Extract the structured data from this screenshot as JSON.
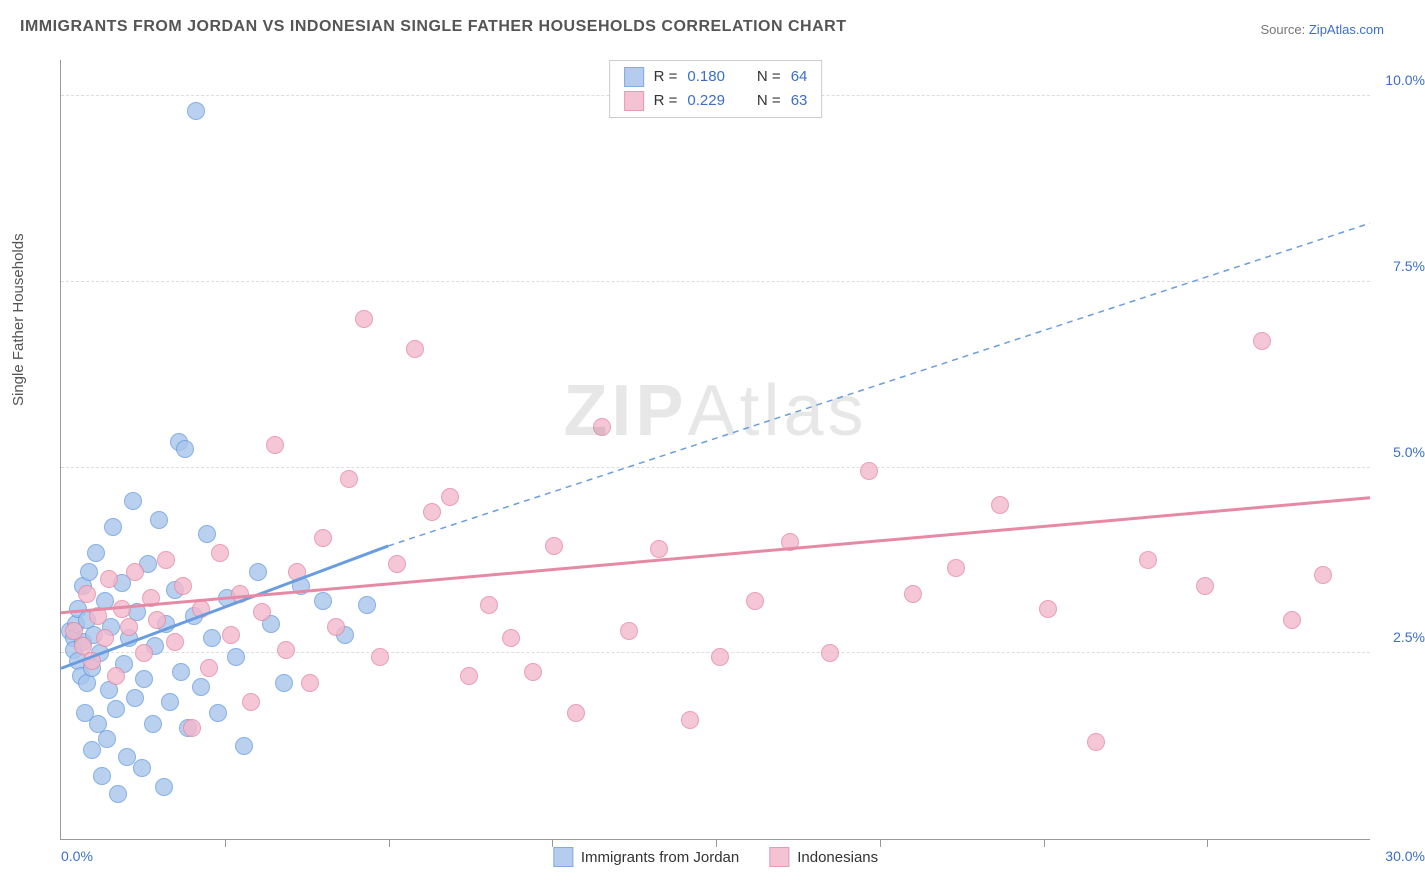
{
  "title": "IMMIGRANTS FROM JORDAN VS INDONESIAN SINGLE FATHER HOUSEHOLDS CORRELATION CHART",
  "source_label": "Source: ",
  "source_link_text": "ZipAtlas.com",
  "y_axis_label": "Single Father Households",
  "watermark_bold": "ZIP",
  "watermark_light": "Atlas",
  "chart": {
    "type": "scatter",
    "x_min": 0.0,
    "x_max": 30.0,
    "y_min": 0.0,
    "y_max": 10.5,
    "x_origin_label": "0.0%",
    "x_max_label": "30.0%",
    "y_ticks": [
      {
        "v": 2.5,
        "label": "2.5%"
      },
      {
        "v": 5.0,
        "label": "5.0%"
      },
      {
        "v": 7.5,
        "label": "7.5%"
      },
      {
        "v": 10.0,
        "label": "10.0%"
      }
    ],
    "x_tick_positions": [
      3.75,
      7.5,
      11.25,
      15.0,
      18.75,
      22.5,
      26.25
    ],
    "marker_radius": 9,
    "marker_stroke_width": 1.5,
    "marker_fill_opacity": 0.35,
    "background_color": "#ffffff",
    "grid_color": "#dddddd",
    "axis_color": "#999999",
    "tick_label_color": "#3b6fc9",
    "series": [
      {
        "key": "jordan",
        "legend_label": "Immigrants from Jordan",
        "color_stroke": "#6a9de0",
        "color_fill": "#a8c5ec",
        "r_label": "R = ",
        "r_value": "0.180",
        "n_label": "N = ",
        "n_value": "64",
        "trend": {
          "solid": {
            "x1": 0.0,
            "y1": 2.3,
            "x2": 7.5,
            "y2": 3.95
          },
          "dashed": {
            "x1": 7.5,
            "y1": 3.95,
            "x2": 30.0,
            "y2": 8.3
          },
          "stroke_width_solid": 3,
          "stroke_width_dashed": 1.5,
          "dash_pattern": "6,5"
        },
        "points": [
          {
            "x": 0.2,
            "y": 2.8
          },
          {
            "x": 0.3,
            "y": 2.7
          },
          {
            "x": 0.3,
            "y": 2.55
          },
          {
            "x": 0.35,
            "y": 2.9
          },
          {
            "x": 0.4,
            "y": 3.1
          },
          {
            "x": 0.4,
            "y": 2.4
          },
          {
            "x": 0.45,
            "y": 2.2
          },
          {
            "x": 0.5,
            "y": 3.4
          },
          {
            "x": 0.5,
            "y": 2.65
          },
          {
            "x": 0.55,
            "y": 1.7
          },
          {
            "x": 0.6,
            "y": 2.1
          },
          {
            "x": 0.6,
            "y": 2.95
          },
          {
            "x": 0.65,
            "y": 3.6
          },
          {
            "x": 0.7,
            "y": 1.2
          },
          {
            "x": 0.7,
            "y": 2.3
          },
          {
            "x": 0.75,
            "y": 2.75
          },
          {
            "x": 0.8,
            "y": 3.85
          },
          {
            "x": 0.85,
            "y": 1.55
          },
          {
            "x": 0.9,
            "y": 2.5
          },
          {
            "x": 0.95,
            "y": 0.85
          },
          {
            "x": 1.0,
            "y": 3.2
          },
          {
            "x": 1.05,
            "y": 1.35
          },
          {
            "x": 1.1,
            "y": 2.0
          },
          {
            "x": 1.15,
            "y": 2.85
          },
          {
            "x": 1.2,
            "y": 4.2
          },
          {
            "x": 1.25,
            "y": 1.75
          },
          {
            "x": 1.3,
            "y": 0.6
          },
          {
            "x": 1.4,
            "y": 3.45
          },
          {
            "x": 1.45,
            "y": 2.35
          },
          {
            "x": 1.5,
            "y": 1.1
          },
          {
            "x": 1.55,
            "y": 2.7
          },
          {
            "x": 1.65,
            "y": 4.55
          },
          {
            "x": 1.7,
            "y": 1.9
          },
          {
            "x": 1.75,
            "y": 3.05
          },
          {
            "x": 1.85,
            "y": 0.95
          },
          {
            "x": 1.9,
            "y": 2.15
          },
          {
            "x": 2.0,
            "y": 3.7
          },
          {
            "x": 2.1,
            "y": 1.55
          },
          {
            "x": 2.15,
            "y": 2.6
          },
          {
            "x": 2.25,
            "y": 4.3
          },
          {
            "x": 2.35,
            "y": 0.7
          },
          {
            "x": 2.4,
            "y": 2.9
          },
          {
            "x": 2.5,
            "y": 1.85
          },
          {
            "x": 2.6,
            "y": 3.35
          },
          {
            "x": 2.7,
            "y": 5.35
          },
          {
            "x": 2.75,
            "y": 2.25
          },
          {
            "x": 2.85,
            "y": 5.25
          },
          {
            "x": 2.9,
            "y": 1.5
          },
          {
            "x": 3.05,
            "y": 3.0
          },
          {
            "x": 3.1,
            "y": 9.8
          },
          {
            "x": 3.2,
            "y": 2.05
          },
          {
            "x": 3.35,
            "y": 4.1
          },
          {
            "x": 3.45,
            "y": 2.7
          },
          {
            "x": 3.6,
            "y": 1.7
          },
          {
            "x": 3.8,
            "y": 3.25
          },
          {
            "x": 4.0,
            "y": 2.45
          },
          {
            "x": 4.2,
            "y": 1.25
          },
          {
            "x": 4.5,
            "y": 3.6
          },
          {
            "x": 4.8,
            "y": 2.9
          },
          {
            "x": 5.1,
            "y": 2.1
          },
          {
            "x": 5.5,
            "y": 3.4
          },
          {
            "x": 6.0,
            "y": 3.2
          },
          {
            "x": 6.5,
            "y": 2.75
          },
          {
            "x": 7.0,
            "y": 3.15
          }
        ]
      },
      {
        "key": "indonesians",
        "legend_label": "Indonesians",
        "color_stroke": "#e589a5",
        "color_fill": "#f3b8cb",
        "r_label": "R = ",
        "r_value": "0.229",
        "n_label": "N = ",
        "n_value": "63",
        "trend": {
          "solid": {
            "x1": 0.0,
            "y1": 3.05,
            "x2": 30.0,
            "y2": 4.6
          },
          "stroke_width_solid": 3
        },
        "points": [
          {
            "x": 0.3,
            "y": 2.8
          },
          {
            "x": 0.5,
            "y": 2.6
          },
          {
            "x": 0.6,
            "y": 3.3
          },
          {
            "x": 0.7,
            "y": 2.4
          },
          {
            "x": 0.85,
            "y": 3.0
          },
          {
            "x": 1.0,
            "y": 2.7
          },
          {
            "x": 1.1,
            "y": 3.5
          },
          {
            "x": 1.25,
            "y": 2.2
          },
          {
            "x": 1.4,
            "y": 3.1
          },
          {
            "x": 1.55,
            "y": 2.85
          },
          {
            "x": 1.7,
            "y": 3.6
          },
          {
            "x": 1.9,
            "y": 2.5
          },
          {
            "x": 2.05,
            "y": 3.25
          },
          {
            "x": 2.2,
            "y": 2.95
          },
          {
            "x": 2.4,
            "y": 3.75
          },
          {
            "x": 2.6,
            "y": 2.65
          },
          {
            "x": 2.8,
            "y": 3.4
          },
          {
            "x": 3.0,
            "y": 1.5
          },
          {
            "x": 3.2,
            "y": 3.1
          },
          {
            "x": 3.4,
            "y": 2.3
          },
          {
            "x": 3.65,
            "y": 3.85
          },
          {
            "x": 3.9,
            "y": 2.75
          },
          {
            "x": 4.1,
            "y": 3.3
          },
          {
            "x": 4.35,
            "y": 1.85
          },
          {
            "x": 4.6,
            "y": 3.05
          },
          {
            "x": 4.9,
            "y": 5.3
          },
          {
            "x": 5.15,
            "y": 2.55
          },
          {
            "x": 5.4,
            "y": 3.6
          },
          {
            "x": 5.7,
            "y": 2.1
          },
          {
            "x": 6.0,
            "y": 4.05
          },
          {
            "x": 6.3,
            "y": 2.85
          },
          {
            "x": 6.6,
            "y": 4.85
          },
          {
            "x": 6.95,
            "y": 7.0
          },
          {
            "x": 7.3,
            "y": 2.45
          },
          {
            "x": 7.7,
            "y": 3.7
          },
          {
            "x": 8.1,
            "y": 6.6
          },
          {
            "x": 8.5,
            "y": 4.4
          },
          {
            "x": 8.9,
            "y": 4.6
          },
          {
            "x": 9.35,
            "y": 2.2
          },
          {
            "x": 9.8,
            "y": 3.15
          },
          {
            "x": 10.3,
            "y": 2.7
          },
          {
            "x": 10.8,
            "y": 2.25
          },
          {
            "x": 11.3,
            "y": 3.95
          },
          {
            "x": 11.8,
            "y": 1.7
          },
          {
            "x": 12.4,
            "y": 5.55
          },
          {
            "x": 13.0,
            "y": 2.8
          },
          {
            "x": 13.7,
            "y": 3.9
          },
          {
            "x": 14.4,
            "y": 1.6
          },
          {
            "x": 15.1,
            "y": 2.45
          },
          {
            "x": 15.9,
            "y": 3.2
          },
          {
            "x": 16.7,
            "y": 4.0
          },
          {
            "x": 17.6,
            "y": 2.5
          },
          {
            "x": 18.5,
            "y": 4.95
          },
          {
            "x": 19.5,
            "y": 3.3
          },
          {
            "x": 20.5,
            "y": 3.65
          },
          {
            "x": 21.5,
            "y": 4.5
          },
          {
            "x": 22.6,
            "y": 3.1
          },
          {
            "x": 23.7,
            "y": 1.3
          },
          {
            "x": 24.9,
            "y": 3.75
          },
          {
            "x": 26.2,
            "y": 3.4
          },
          {
            "x": 27.5,
            "y": 6.7
          },
          {
            "x": 28.2,
            "y": 2.95
          },
          {
            "x": 28.9,
            "y": 3.55
          }
        ]
      }
    ]
  }
}
